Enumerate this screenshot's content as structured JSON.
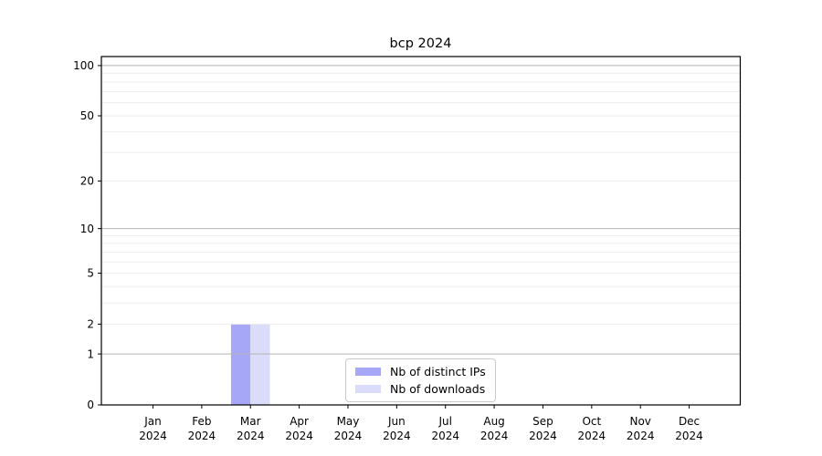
{
  "chart_data": {
    "type": "bar",
    "title": "bcp 2024",
    "categories": [
      "Jan 2024",
      "Feb 2024",
      "Mar 2024",
      "Apr 2024",
      "May 2024",
      "Jun 2024",
      "Jul 2024",
      "Aug 2024",
      "Sep 2024",
      "Oct 2024",
      "Nov 2024",
      "Dec 2024"
    ],
    "series": [
      {
        "name": "Nb of distinct IPs",
        "color": "#a7a7f8",
        "values": [
          0,
          0,
          2,
          0,
          0,
          0,
          0,
          0,
          0,
          0,
          0,
          0
        ]
      },
      {
        "name": "Nb of downloads",
        "color": "#dadcf9",
        "values": [
          0,
          0,
          2,
          0,
          0,
          0,
          0,
          0,
          0,
          0,
          0,
          0
        ]
      }
    ],
    "xlabel": "",
    "ylabel": "",
    "yscale": "symlog",
    "ylim": [
      0,
      113
    ],
    "ytick_values": [
      0,
      1,
      2,
      5,
      10,
      20,
      50,
      100
    ],
    "ytick_labels": [
      "0",
      "1",
      "2",
      "5",
      "10",
      "20",
      "50",
      "100"
    ],
    "ymajor_gridlines": [
      1,
      10,
      100
    ],
    "yminor_gridlines": [
      2,
      3,
      4,
      5,
      6,
      7,
      8,
      9,
      20,
      30,
      40,
      50,
      60,
      70,
      80,
      90
    ],
    "grid": "horizontal major+minor, grid drawn above bars",
    "legend": {
      "position": "lower center"
    },
    "colors": {
      "background": "#ffffff",
      "spine": "#000000",
      "tick": "#000000",
      "major_grid": "#b5b5b5",
      "minor_grid": "#ededed",
      "text": "#000000"
    }
  }
}
